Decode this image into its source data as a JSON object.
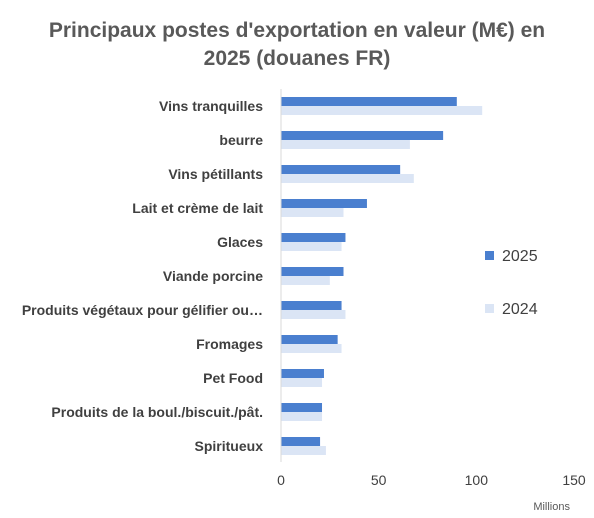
{
  "chart_data": {
    "type": "bar",
    "orientation": "horizontal",
    "title_line1": "Principaux postes d'exportation en valeur (M€) en",
    "title_line2": "2025 (douanes FR)",
    "categories": [
      "Vins tranquilles",
      "beurre",
      "Vins pétillants",
      "Lait et crème de lait",
      "Glaces",
      "Viande porcine",
      "Produits végétaux pour gélifier ou…",
      "Fromages",
      "Pet Food",
      "Produits de la boul./biscuit./pât.",
      "Spiritueux"
    ],
    "series": [
      {
        "name": "2025",
        "color": "#4a7fcf",
        "values": [
          90,
          83,
          61,
          44,
          33,
          32,
          31,
          29,
          22,
          21,
          20
        ]
      },
      {
        "name": "2024",
        "color": "#dbe5f5",
        "values": [
          103,
          66,
          68,
          32,
          31,
          25,
          33,
          31,
          21,
          21,
          23
        ]
      }
    ],
    "xlim": [
      0,
      150
    ],
    "xticks": [
      0,
      50,
      100,
      150
    ],
    "x_unit_label": "Millions",
    "legend_position": "right",
    "grid": false
  }
}
